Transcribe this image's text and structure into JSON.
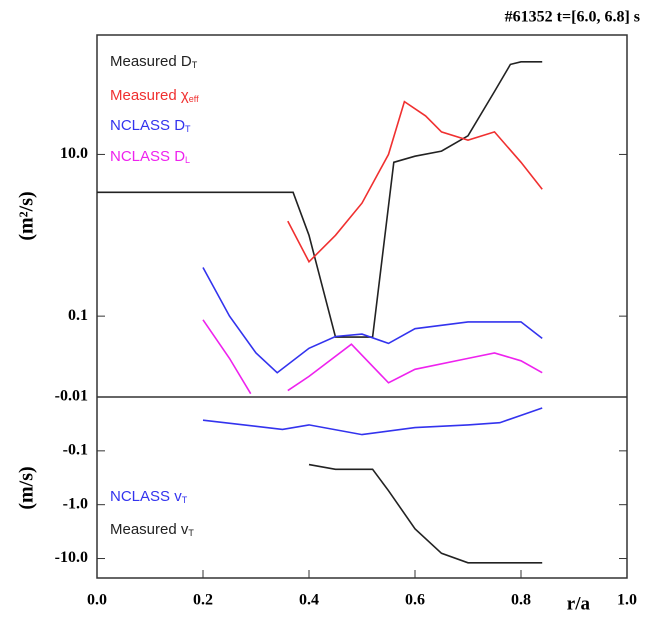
{
  "chart_data": [
    {
      "type": "line",
      "title": "#61352 t=[6.0, 6.8] s",
      "ylabel": "(m²/s)",
      "yscale": "log",
      "xlim": [
        0,
        1
      ],
      "ylim": [
        0.01,
        300
      ],
      "yticks": [
        {
          "value": 10,
          "label": "10.0"
        },
        0.1
      ],
      "series": [
        {
          "name": "Measured D",
          "subscript": "T",
          "color": "#222222",
          "x": [
            0.0,
            0.1,
            0.2,
            0.3,
            0.37,
            0.4,
            0.45,
            0.5,
            0.52,
            0.56,
            0.6,
            0.65,
            0.7,
            0.75,
            0.78,
            0.8,
            0.84
          ],
          "values": [
            3.4,
            3.4,
            3.4,
            3.4,
            3.4,
            1.0,
            0.055,
            0.055,
            0.055,
            8,
            9.5,
            11,
            17,
            60,
            130,
            140,
            140
          ]
        },
        {
          "name": "Measured χ",
          "subscript": "eff",
          "color": "#f03030",
          "x": [
            0.36,
            0.4,
            0.45,
            0.5,
            0.55,
            0.58,
            0.62,
            0.65,
            0.7,
            0.75,
            0.8,
            0.84
          ],
          "values": [
            1.5,
            0.47,
            1.0,
            2.5,
            10,
            45,
            30,
            19,
            15,
            19,
            8,
            3.7
          ]
        },
        {
          "name": "NCLASS D",
          "subscript": "T",
          "color": "#3333ee",
          "x": [
            0.2,
            0.25,
            0.3,
            0.34,
            0.4,
            0.45,
            0.5,
            0.55,
            0.6,
            0.7,
            0.8,
            0.84
          ],
          "values": [
            0.4,
            0.1,
            0.035,
            0.02,
            0.04,
            0.056,
            0.06,
            0.046,
            0.07,
            0.085,
            0.085,
            0.053
          ]
        },
        {
          "name": "NCLASS D",
          "subscript": "L",
          "color": "#ee22ee",
          "x": [
            0.2,
            0.25,
            0.29,
            0.32,
            0.36,
            0.4,
            0.48,
            0.55,
            0.6,
            0.7,
            0.75,
            0.8,
            0.84
          ],
          "values": [
            0.09,
            0.03,
            0.011,
            null,
            0.012,
            0.018,
            0.045,
            0.015,
            0.022,
            0.03,
            0.035,
            0.028,
            0.02
          ]
        }
      ]
    },
    {
      "type": "line",
      "ylabel": "(m/s)",
      "xlabel": "r/a",
      "yscale": "log",
      "xlim": [
        0,
        1
      ],
      "ylim": [
        -23,
        -0.01
      ],
      "xticks": [
        {
          "value": 0,
          "label": "0.0"
        },
        0.2,
        0.4,
        0.6,
        0.8,
        {
          "value": 1,
          "label": "1.0"
        }
      ],
      "yticks": [
        -0.01,
        -0.1,
        {
          "value": -1,
          "label": "-1.0"
        },
        {
          "value": -10,
          "label": "-10.0"
        }
      ],
      "series": [
        {
          "name": "NCLASS v",
          "subscript": "T",
          "color": "#3333ee",
          "x": [
            0.2,
            0.3,
            0.35,
            0.4,
            0.5,
            0.6,
            0.7,
            0.76,
            0.8,
            0.84
          ],
          "values": [
            -0.027,
            -0.035,
            -0.04,
            -0.033,
            -0.05,
            -0.037,
            -0.033,
            -0.03,
            -0.022,
            -0.016
          ]
        },
        {
          "name": "Measured v",
          "subscript": "T",
          "color": "#222222",
          "x": [
            0.4,
            0.45,
            0.52,
            0.55,
            0.6,
            0.65,
            0.7,
            0.8,
            0.84
          ],
          "values": [
            -0.18,
            -0.22,
            -0.22,
            -0.55,
            -2.8,
            -8,
            -12,
            -12,
            -12
          ]
        }
      ]
    }
  ]
}
